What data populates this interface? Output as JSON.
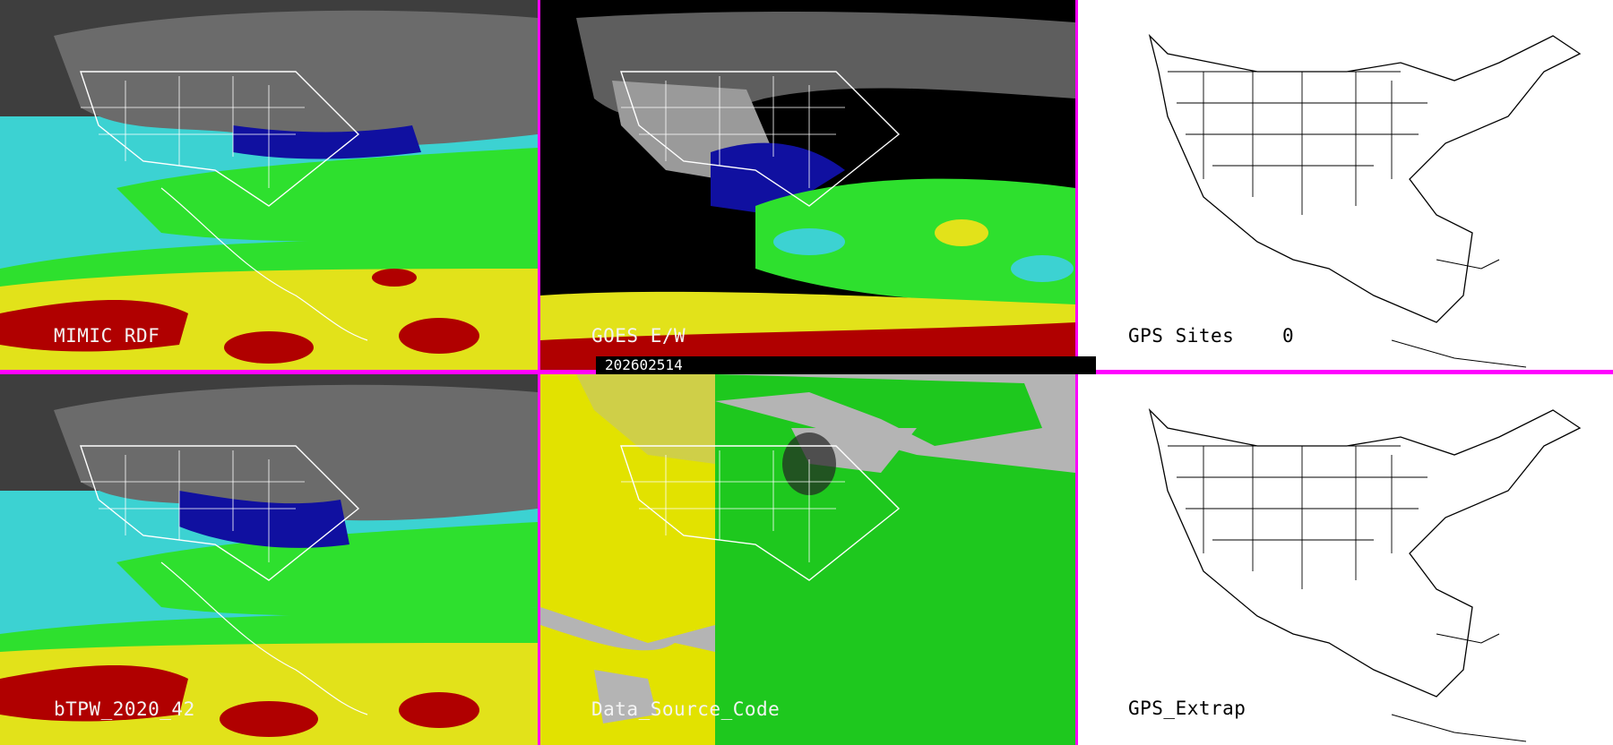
{
  "grid": {
    "rows": 2,
    "columns": 3,
    "separator_color": "#ff00ff"
  },
  "panels": [
    {
      "id": "p1",
      "label": "MIMIC RDF",
      "style": "moisture"
    },
    {
      "id": "p2",
      "label": "GOES E/W",
      "style": "goes"
    },
    {
      "id": "p3",
      "label": "GPS Sites",
      "value": "0",
      "style": "blank"
    },
    {
      "id": "p4",
      "label": "bTPW_2020_42",
      "style": "moisture"
    },
    {
      "id": "p5",
      "label": "Data_Source_Code",
      "style": "source"
    },
    {
      "id": "p6",
      "label": "GPS_Extrap",
      "style": "blank"
    }
  ],
  "timestamp": "202602514",
  "colors": {
    "land_gray": "#7a7a7a",
    "dark_gray": "#3e3e3e",
    "cyan": "#3cd2d2",
    "blue": "#1010a0",
    "green": "#2ee02e",
    "yellow": "#e2e21a",
    "red": "#b00000",
    "source_yellow": "#e2e200",
    "source_green": "#1ec81e",
    "source_gray": "#b4b4b4"
  }
}
